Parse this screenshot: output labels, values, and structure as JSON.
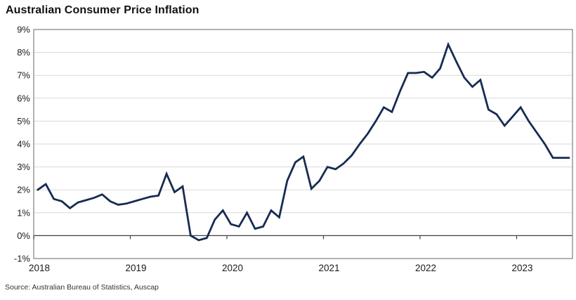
{
  "title": "Australian Consumer Price Inflation",
  "source": "Source: Australian Bureau of Statistics, Auscap",
  "chart_data": {
    "type": "line",
    "title": "Australian Consumer Price Inflation",
    "series_name": "Consumer price inflation, annual % change",
    "frequency": "monthly",
    "grid": "horizontal",
    "legend": "none",
    "ylim": [
      -1,
      9
    ],
    "line_color": "#172b52",
    "y_tick_labels": [
      "9%",
      "8%",
      "7%",
      "6%",
      "5%",
      "4%",
      "3%",
      "2%",
      "1%",
      "0%",
      "-1%"
    ],
    "x_tick_labels": [
      "2018",
      "2019",
      "2020",
      "2021",
      "2022",
      "2023"
    ],
    "x": [
      "2018-01",
      "2018-02",
      "2018-03",
      "2018-04",
      "2018-05",
      "2018-06",
      "2018-07",
      "2018-08",
      "2018-09",
      "2018-10",
      "2018-11",
      "2018-12",
      "2019-01",
      "2019-02",
      "2019-03",
      "2019-04",
      "2019-05",
      "2019-06",
      "2019-07",
      "2019-08",
      "2019-09",
      "2019-10",
      "2019-11",
      "2019-12",
      "2020-01",
      "2020-02",
      "2020-03",
      "2020-04",
      "2020-05",
      "2020-06",
      "2020-07",
      "2020-08",
      "2020-09",
      "2020-10",
      "2020-11",
      "2020-12",
      "2021-01",
      "2021-02",
      "2021-03",
      "2021-04",
      "2021-05",
      "2021-06",
      "2021-07",
      "2021-08",
      "2021-09",
      "2021-10",
      "2021-11",
      "2021-12",
      "2022-01",
      "2022-02",
      "2022-03",
      "2022-04",
      "2022-05",
      "2022-06",
      "2022-07",
      "2022-08",
      "2022-09",
      "2022-10",
      "2022-11",
      "2022-12",
      "2023-01",
      "2023-02",
      "2023-03",
      "2023-04",
      "2023-05",
      "2023-06",
      "2023-07"
    ],
    "values": [
      2.0,
      2.25,
      1.6,
      1.5,
      1.2,
      1.45,
      1.55,
      1.65,
      1.8,
      1.5,
      1.35,
      1.4,
      1.5,
      1.6,
      1.7,
      1.75,
      2.7,
      1.9,
      2.15,
      0.0,
      -0.2,
      -0.1,
      0.7,
      1.1,
      0.5,
      0.4,
      1.0,
      0.3,
      0.4,
      1.1,
      0.8,
      2.4,
      3.2,
      3.45,
      2.05,
      2.4,
      3.0,
      2.9,
      3.15,
      3.5,
      4.0,
      4.45,
      5.0,
      5.6,
      5.4,
      6.3,
      7.1,
      7.1,
      7.15,
      6.9,
      7.3,
      8.35,
      7.6,
      6.9,
      6.5,
      6.8,
      5.5,
      5.3,
      4.8,
      5.2,
      5.6,
      5.0,
      4.5,
      4.0,
      3.4,
      3.4,
      3.4
    ]
  }
}
